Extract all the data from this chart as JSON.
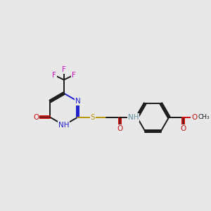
{
  "bg_color": "#e8e8e8",
  "bond_color": "#1a1a1a",
  "N_color": "#2020cc",
  "O_color": "#cc1010",
  "S_color": "#b8960c",
  "F_color": "#cc10cc",
  "H_color": "#6090a0",
  "lw": 1.4,
  "fs": 7.0,
  "sep": 0.055,
  "xlim": [
    -1.0,
    9.5
  ],
  "ylim": [
    1.5,
    8.5
  ]
}
